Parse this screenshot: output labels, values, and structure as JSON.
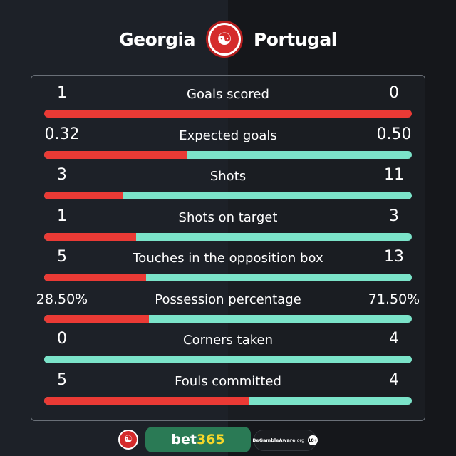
{
  "header": {
    "home": "Georgia",
    "away": "Portugal",
    "logo_icon": "swirl-logo-icon"
  },
  "colors": {
    "home": "#ea3a35",
    "away": "#7be3c9"
  },
  "stats": [
    {
      "label": "Goals scored",
      "home": "1",
      "away": "0",
      "home_share": 1.0
    },
    {
      "label": "Expected goals",
      "home": "0.32",
      "away": "0.50",
      "home_share": 0.39
    },
    {
      "label": "Shots",
      "home": "3",
      "away": "11",
      "home_share": 0.214
    },
    {
      "label": "Shots on target",
      "home": "1",
      "away": "3",
      "home_share": 0.25
    },
    {
      "label": "Touches in the opposition box",
      "home": "5",
      "away": "13",
      "home_share": 0.278
    },
    {
      "label": "Possession percentage",
      "home": "28.50%",
      "away": "71.50%",
      "home_share": 0.285
    },
    {
      "label": "Corners taken",
      "home": "0",
      "away": "4",
      "home_share": 0.0
    },
    {
      "label": "Fouls committed",
      "home": "5",
      "away": "4",
      "home_share": 0.556
    }
  ],
  "footer": {
    "sponsor_a": "bet",
    "sponsor_b": "365",
    "gamble": "BeGambleAware",
    "gamble_suffix": ".org",
    "age": "18+"
  }
}
